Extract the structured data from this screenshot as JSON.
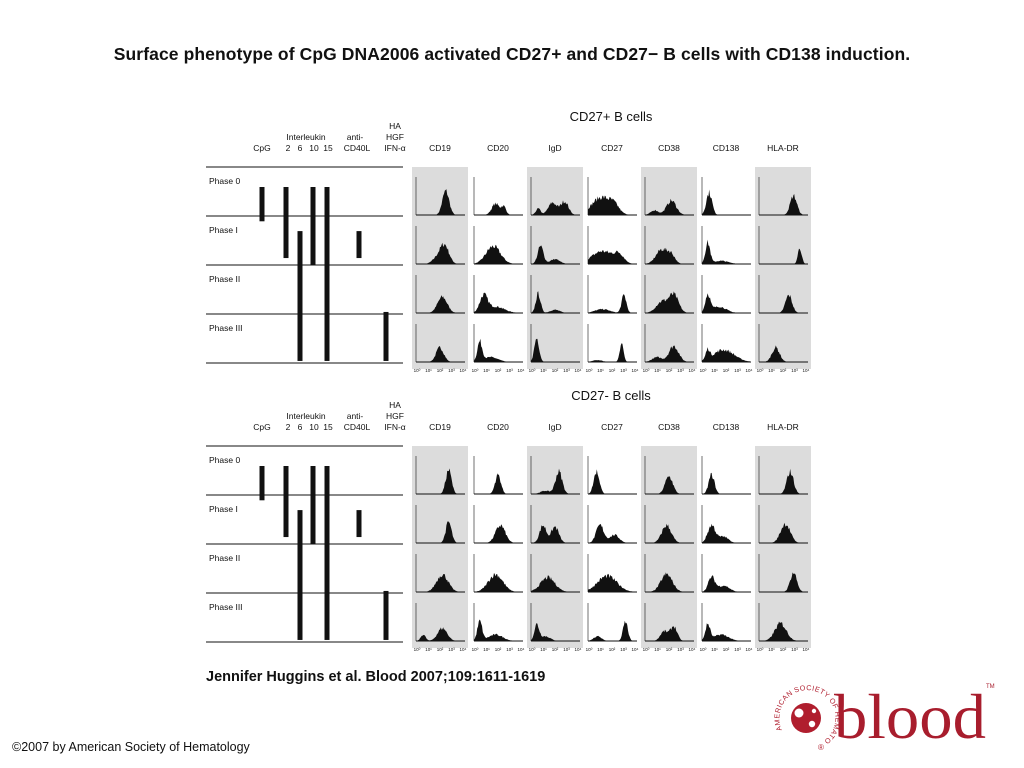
{
  "slide": {
    "title": "Surface phenotype of CpG DNA2006 activated CD27+ and CD27− B cells with CD138 induction.",
    "citation": "Jennifer Huggins et al. Blood 2007;109:1611-1619",
    "copyright": "©2007 by American Society of Hematology"
  },
  "logo": {
    "wordmark": "blood",
    "society": "AMERICAN SOCIETY OF HEMATOLOGY",
    "trademark": "TM",
    "registered": "®",
    "colors": {
      "wordmark": "#a81d2d",
      "emblem": "#b01e2e"
    }
  },
  "legend": {
    "headers": {
      "cpg": "CpG",
      "interleukin": "Interleukin",
      "il_numbers": [
        "2",
        "6",
        "10",
        "15"
      ],
      "anti_cd40l": [
        "anti-",
        "CD40L"
      ],
      "ha_group": [
        "HA",
        "HGF",
        "IFN-α"
      ]
    },
    "phases": [
      "Phase 0",
      "Phase I",
      "Phase II",
      "Phase III"
    ]
  },
  "panels": [
    {
      "title": "CD27+ B cells"
    },
    {
      "title": "CD27- B cells"
    }
  ],
  "markers": [
    "CD19",
    "CD20",
    "IgD",
    "CD27",
    "CD38",
    "CD138",
    "HLA-DR"
  ],
  "axis_ticks": [
    "10⁰",
    "10¹",
    "10²",
    "10³",
    "10⁴"
  ],
  "colors": {
    "shade": "#dcdcdc",
    "ink": "#111111"
  }
}
